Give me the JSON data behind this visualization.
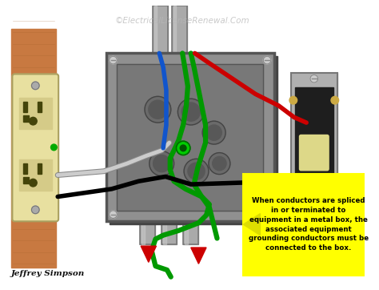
{
  "bg_color": "#ffffff",
  "title_text": "©ElectricalLicenseRenewal.Com",
  "title_color": "#b8b8b8",
  "annotation_text": "When conductors are spliced\nin or terminated to\nequipment in a metal box, the\nassociated equipment\ngrounding conductors must be\nconnected to the box.",
  "annotation_bg": "#ffff00",
  "annotation_border": "#cccc00",
  "annotation_arrow_color": "#dddd00",
  "author_text": "Jeffrey Simpson",
  "author_color": "#111111",
  "box_color": "#909090",
  "box_edge_color": "#555555",
  "wood_color": "#c87941",
  "wood_grain": "#a0612a",
  "outlet_color": "#e8e0a0",
  "outlet_edge": "#aaa060",
  "switch_body": "#222222",
  "switch_plate": "#aaaaaa",
  "conduit_color": "#aaaaaa",
  "conduit_edge": "#777777",
  "arrow_color": "#cc0000",
  "wire_white": "#cccccc",
  "wire_black": "#111111",
  "wire_blue": "#1155cc",
  "wire_green": "#009900",
  "wire_red": "#cc0000"
}
